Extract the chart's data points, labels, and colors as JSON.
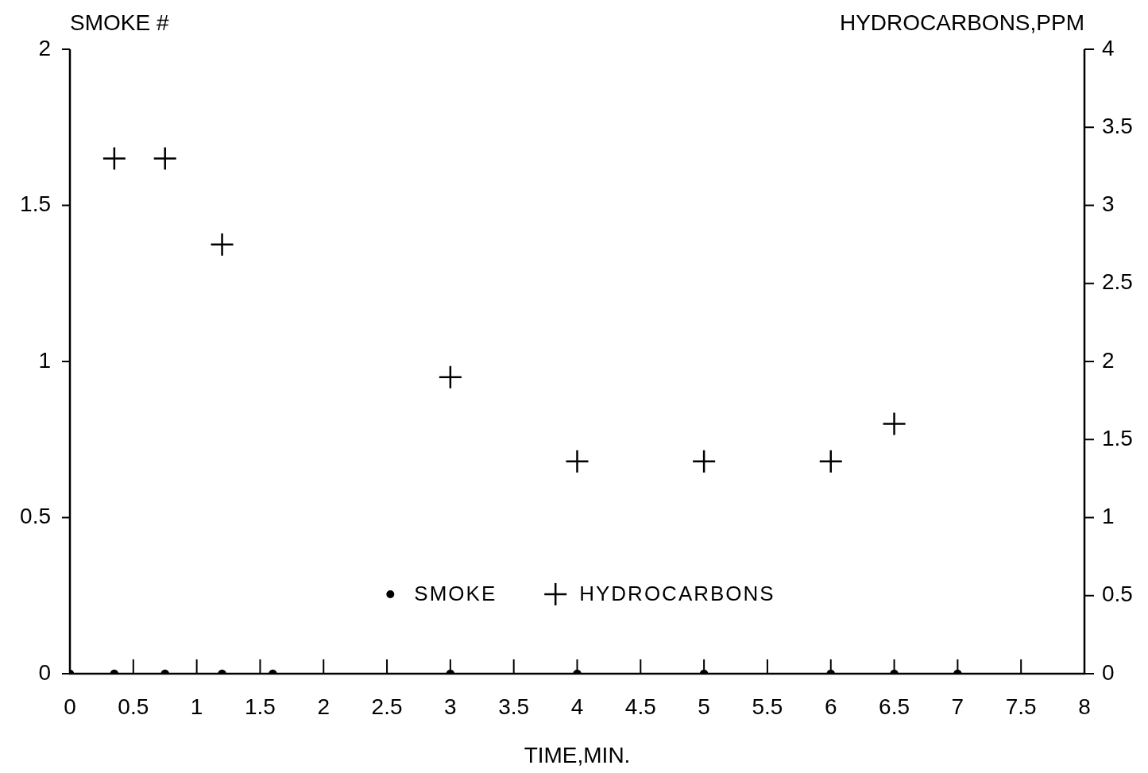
{
  "chart_data": {
    "type": "scatter",
    "xlabel": "TIME,MIN.",
    "ylabel": "SMOKE #",
    "y2label": "HYDROCARBONS,PPM",
    "legend": "bottom",
    "xlim": [
      0,
      8
    ],
    "xticks": [
      0,
      0.5,
      1,
      1.5,
      2,
      2.5,
      3,
      3.5,
      4,
      4.5,
      5,
      5.5,
      6,
      6.5,
      7,
      7.5,
      8
    ],
    "ylim": [
      0,
      2
    ],
    "yticks": [
      0,
      0.5,
      1,
      1.5,
      2
    ],
    "y2lim": [
      0,
      4
    ],
    "y2ticks": [
      0,
      0.5,
      1,
      1.5,
      2,
      2.5,
      3,
      3.5,
      4
    ],
    "series": [
      {
        "name": "SMOKE",
        "color": "#000000",
        "marker": "circle",
        "x": [
          0,
          0.35,
          0.75,
          1.2,
          1.6,
          3,
          4,
          5,
          6,
          6.5,
          7
        ],
        "values": [
          0,
          0,
          0,
          0,
          0,
          0,
          0,
          0,
          0,
          0,
          0
        ]
      },
      {
        "name": "HYDROCARBONS",
        "color": "#000000",
        "marker": "cross",
        "axis": "y2",
        "x": [
          0.35,
          0.75,
          1.2,
          3,
          4,
          5,
          6,
          6.5
        ],
        "values": [
          3.3,
          3.3,
          2.75,
          1.9,
          1.36,
          1.36,
          1.36,
          1.6
        ]
      }
    ]
  }
}
